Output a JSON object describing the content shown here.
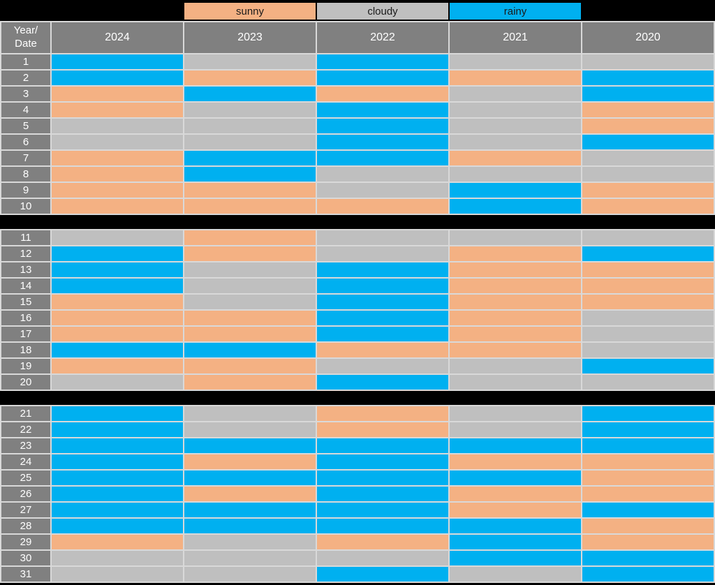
{
  "colors": {
    "sunny": "#F4B183",
    "cloudy": "#BFBFBF",
    "rainy": "#00B0F0",
    "header_bg": "#808080",
    "header_text": "#FFFFFF",
    "grid_line": "#D9D9D9",
    "background": "#000000",
    "legend_text": "#1a1a1a"
  },
  "legend": {
    "items": [
      {
        "label": "sunny",
        "key": "sunny",
        "color": "#F4B183"
      },
      {
        "label": "cloudy",
        "key": "cloudy",
        "color": "#BFBFBF"
      },
      {
        "label": "rainy",
        "key": "rainy",
        "color": "#00B0F0"
      }
    ]
  },
  "header": {
    "corner_label": "Year/\nDate",
    "years": [
      "2024",
      "2023",
      "2022",
      "2021",
      "2020"
    ]
  },
  "chart_data": {
    "type": "heatmap",
    "title": "",
    "description": "Calendar heatmap of daily weather category (sunny / cloudy / rainy) for dates 1-31 across years 2024-2020",
    "row_label_header": "Year/Date",
    "columns": [
      "2024",
      "2023",
      "2022",
      "2021",
      "2020"
    ],
    "categories": [
      "sunny",
      "cloudy",
      "rainy"
    ],
    "category_colors": {
      "sunny": "#F4B183",
      "cloudy": "#BFBFBF",
      "rainy": "#00B0F0"
    },
    "row_groups": [
      [
        1,
        10
      ],
      [
        11,
        20
      ],
      [
        21,
        31
      ]
    ],
    "rows": [
      1,
      2,
      3,
      4,
      5,
      6,
      7,
      8,
      9,
      10,
      11,
      12,
      13,
      14,
      15,
      16,
      17,
      18,
      19,
      20,
      21,
      22,
      23,
      24,
      25,
      26,
      27,
      28,
      29,
      30,
      31
    ],
    "values": [
      [
        "rainy",
        "cloudy",
        "rainy",
        "cloudy",
        "cloudy"
      ],
      [
        "rainy",
        "sunny",
        "rainy",
        "sunny",
        "rainy"
      ],
      [
        "sunny",
        "rainy",
        "sunny",
        "cloudy",
        "rainy"
      ],
      [
        "sunny",
        "cloudy",
        "rainy",
        "cloudy",
        "sunny"
      ],
      [
        "cloudy",
        "cloudy",
        "rainy",
        "cloudy",
        "sunny"
      ],
      [
        "cloudy",
        "cloudy",
        "rainy",
        "cloudy",
        "rainy"
      ],
      [
        "sunny",
        "rainy",
        "rainy",
        "sunny",
        "cloudy"
      ],
      [
        "sunny",
        "rainy",
        "cloudy",
        "cloudy",
        "cloudy"
      ],
      [
        "sunny",
        "sunny",
        "cloudy",
        "rainy",
        "sunny"
      ],
      [
        "sunny",
        "sunny",
        "sunny",
        "rainy",
        "sunny"
      ],
      [
        "cloudy",
        "sunny",
        "cloudy",
        "cloudy",
        "cloudy"
      ],
      [
        "rainy",
        "sunny",
        "cloudy",
        "sunny",
        "rainy"
      ],
      [
        "rainy",
        "cloudy",
        "rainy",
        "sunny",
        "sunny"
      ],
      [
        "rainy",
        "cloudy",
        "rainy",
        "sunny",
        "sunny"
      ],
      [
        "sunny",
        "cloudy",
        "rainy",
        "sunny",
        "sunny"
      ],
      [
        "sunny",
        "sunny",
        "rainy",
        "sunny",
        "cloudy"
      ],
      [
        "sunny",
        "sunny",
        "rainy",
        "sunny",
        "cloudy"
      ],
      [
        "rainy",
        "rainy",
        "sunny",
        "sunny",
        "cloudy"
      ],
      [
        "sunny",
        "sunny",
        "cloudy",
        "cloudy",
        "rainy"
      ],
      [
        "cloudy",
        "sunny",
        "rainy",
        "cloudy",
        "cloudy"
      ],
      [
        "rainy",
        "cloudy",
        "sunny",
        "cloudy",
        "rainy"
      ],
      [
        "rainy",
        "cloudy",
        "sunny",
        "cloudy",
        "rainy"
      ],
      [
        "rainy",
        "rainy",
        "rainy",
        "rainy",
        "rainy"
      ],
      [
        "rainy",
        "sunny",
        "rainy",
        "sunny",
        "sunny"
      ],
      [
        "rainy",
        "rainy",
        "rainy",
        "rainy",
        "sunny"
      ],
      [
        "rainy",
        "sunny",
        "rainy",
        "sunny",
        "sunny"
      ],
      [
        "rainy",
        "rainy",
        "rainy",
        "sunny",
        "rainy"
      ],
      [
        "rainy",
        "rainy",
        "rainy",
        "rainy",
        "sunny"
      ],
      [
        "sunny",
        "cloudy",
        "sunny",
        "rainy",
        "sunny"
      ],
      [
        "cloudy",
        "cloudy",
        "cloudy",
        "rainy",
        "rainy"
      ],
      [
        "cloudy",
        "cloudy",
        "rainy",
        "cloudy",
        "rainy"
      ]
    ]
  }
}
